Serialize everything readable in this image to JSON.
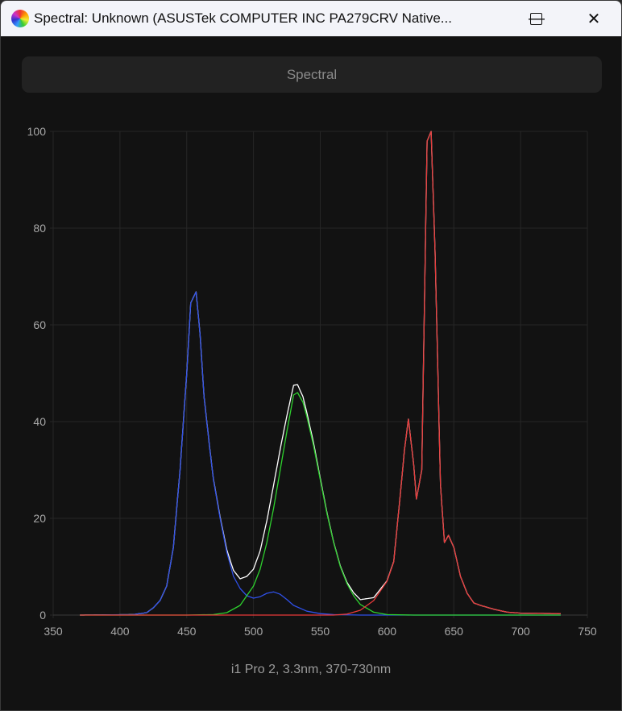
{
  "window": {
    "title": "Spectral: Unknown (ASUSTek COMPUTER INC PA279CRV Native...",
    "minimize": "—",
    "maximize": "☐",
    "close": "✕"
  },
  "toolbar": {
    "spectral_button": "Spectral"
  },
  "footer": {
    "text": "i1 Pro 2, 3.3nm, 370-730nm"
  },
  "chart_data": {
    "type": "line",
    "title": "",
    "xlabel": "",
    "ylabel": "",
    "xlim": [
      350,
      750
    ],
    "ylim": [
      0,
      100
    ],
    "grid": true,
    "x_ticks": [
      "350",
      "400",
      "450",
      "500",
      "550",
      "600",
      "650",
      "700",
      "750"
    ],
    "y_ticks": [
      "0",
      "20",
      "40",
      "60",
      "80",
      "100"
    ],
    "series": [
      {
        "name": "Blue",
        "color": "#2f50e8",
        "x": [
          370,
          410,
          420,
          425,
          430,
          435,
          440,
          445,
          450,
          453,
          457,
          460,
          463,
          467,
          470,
          475,
          480,
          485,
          490,
          495,
          500,
          505,
          510,
          515,
          520,
          525,
          530,
          540,
          550,
          560,
          580,
          730
        ],
        "y": [
          0,
          0.1,
          0.5,
          1.5,
          3,
          6,
          14,
          30,
          50,
          64.5,
          66.8,
          58,
          45,
          35,
          28,
          20,
          13,
          8,
          5.5,
          4,
          3.5,
          3.8,
          4.5,
          4.8,
          4.3,
          3.2,
          2,
          0.8,
          0.3,
          0.1,
          0,
          0
        ]
      },
      {
        "name": "Green",
        "color": "#2ed12e",
        "x": [
          370,
          450,
          470,
          480,
          490,
          500,
          505,
          510,
          515,
          520,
          525,
          530,
          533,
          537,
          540,
          545,
          550,
          555,
          560,
          565,
          570,
          575,
          580,
          590,
          600,
          620,
          730
        ],
        "y": [
          0,
          0,
          0.1,
          0.5,
          2,
          6,
          9.5,
          15,
          22,
          30,
          38,
          45.5,
          46,
          44,
          41,
          35,
          28,
          21,
          15,
          10,
          6.5,
          4,
          2.2,
          0.6,
          0.1,
          0,
          0
        ]
      },
      {
        "name": "Red",
        "color": "#e83a3a",
        "x": [
          370,
          560,
          570,
          580,
          590,
          600,
          605,
          610,
          613,
          616,
          620,
          622,
          626,
          630,
          633,
          636,
          640,
          643,
          646,
          650,
          655,
          660,
          665,
          670,
          680,
          690,
          700,
          730
        ],
        "y": [
          0,
          0,
          0.2,
          1,
          3,
          7,
          11,
          25,
          34,
          40.5,
          31,
          24,
          30,
          98,
          100,
          75,
          27,
          15,
          16.5,
          14,
          8,
          4.5,
          2.5,
          2,
          1.2,
          0.6,
          0.4,
          0.3
        ]
      },
      {
        "name": "Total",
        "color": "#ffffff",
        "derived": "sum of Red, Green, Blue"
      }
    ]
  }
}
